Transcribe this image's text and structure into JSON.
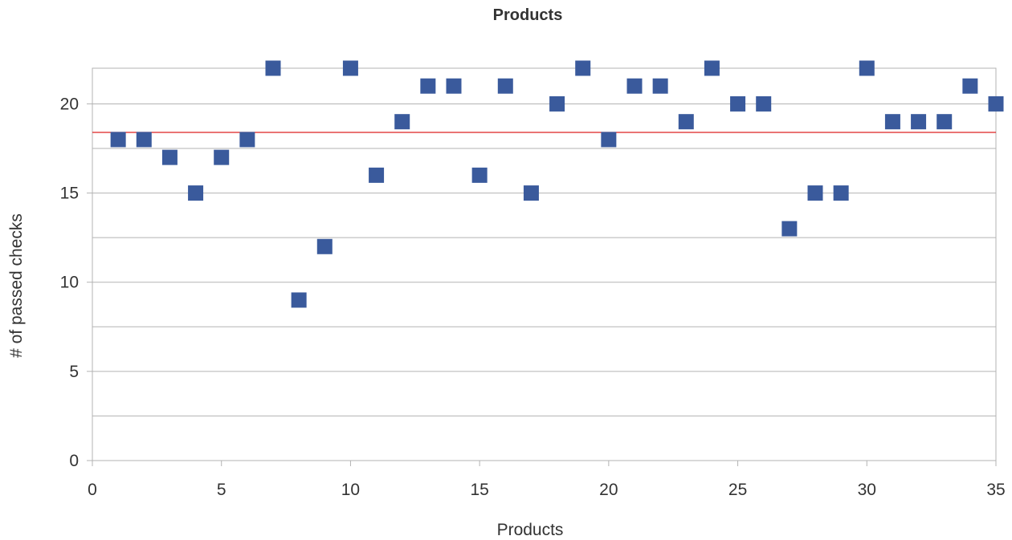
{
  "chart_data": {
    "type": "scatter",
    "title": "Products",
    "xlabel": "Products",
    "ylabel": "# of passed checks",
    "xlim": [
      0,
      35
    ],
    "ylim": [
      0,
      22
    ],
    "x_ticks": [
      0,
      5,
      10,
      15,
      20,
      25,
      30,
      35
    ],
    "y_ticks": [
      0,
      5,
      10,
      15,
      20
    ],
    "y_minor_gridlines": [
      2.5,
      7.5,
      12.5,
      17.5
    ],
    "grid": true,
    "legend": "none",
    "series": [
      {
        "marker": "square",
        "color": "#3a5a9c",
        "x": [
          1,
          2,
          3,
          4,
          5,
          6,
          7,
          8,
          9,
          10,
          11,
          12,
          13,
          14,
          15,
          16,
          17,
          18,
          19,
          20,
          21,
          22,
          23,
          24,
          25,
          26,
          27,
          28,
          29,
          30,
          31,
          32,
          33,
          34,
          35
        ],
        "y": [
          18,
          18,
          17,
          15,
          17,
          18,
          22,
          9,
          12,
          22,
          16,
          19,
          21,
          21,
          16,
          21,
          15,
          20,
          22,
          18,
          21,
          21,
          19,
          22,
          20,
          20,
          13,
          15,
          15,
          22,
          19,
          19,
          19,
          21,
          20
        ]
      }
    ],
    "reference_line": {
      "y": 18.4,
      "color": "#dd2222"
    }
  }
}
